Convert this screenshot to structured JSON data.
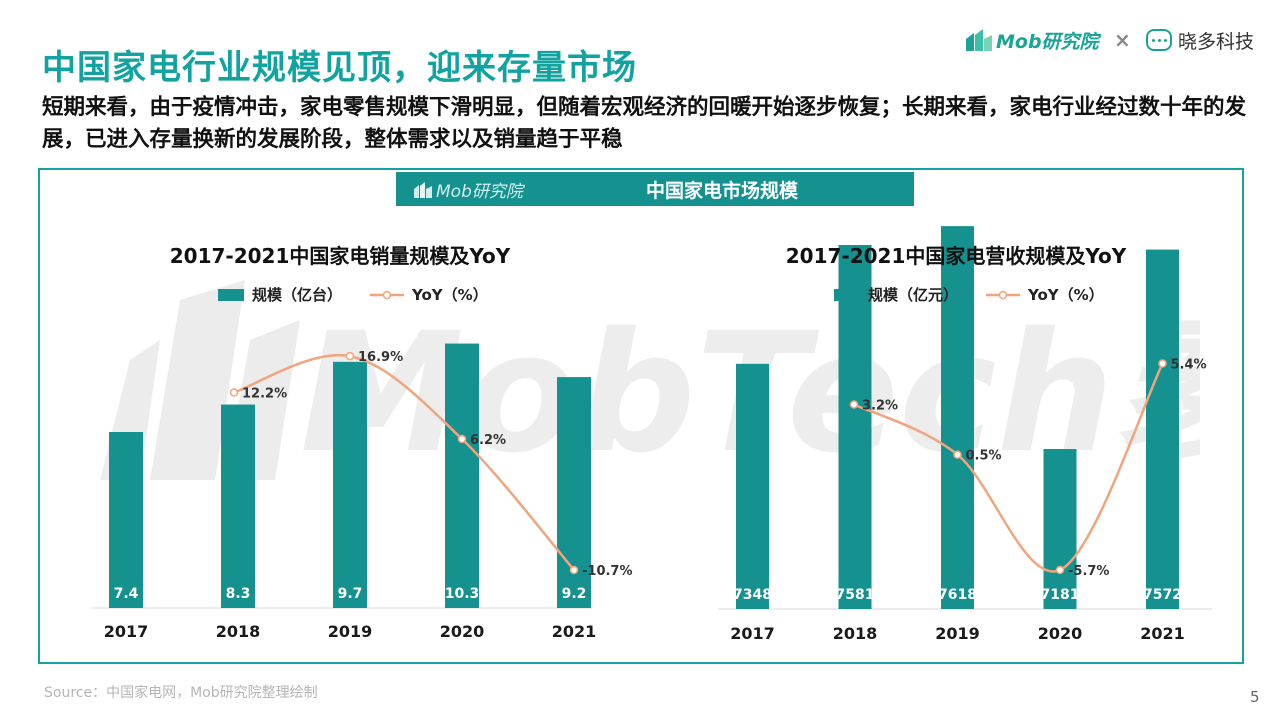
{
  "header": {
    "title": "中国家电行业规模见顶，迎来存量市场",
    "subtitle": "短期来看，由于疫情冲击，家电零售规模下滑明显，但随着宏观经济的回暖开始逐步恢复；长期来看，家电行业经过数十年的发展，已进入存量换新的发展阶段，整体需求以及销量趋于平稳",
    "brand_mob": "Mob研究院",
    "brand_sep": "×",
    "brand_partner": "晓多科技"
  },
  "panel": {
    "logo": "Mob研究院",
    "title": "中国家电市场规模"
  },
  "watermark": "MobTech袤博",
  "colors": {
    "accent": "#11a3a0",
    "bar": "#15928f",
    "line": "#f2a47c"
  },
  "chart_data": [
    {
      "type": "bar",
      "title": "2017-2021中国家电销量规模及YoY",
      "categories": [
        "2017",
        "2018",
        "2019",
        "2020",
        "2021"
      ],
      "series": [
        {
          "name": "规模（亿台）",
          "type": "bar",
          "values": [
            7.4,
            8.3,
            9.7,
            10.3,
            9.2
          ],
          "labels": [
            "7.4",
            "8.3",
            "9.7",
            "10.3",
            "9.2"
          ]
        },
        {
          "name": "YoY（%）",
          "type": "line",
          "values": [
            null,
            12.2,
            16.9,
            6.2,
            -10.7
          ],
          "labels": [
            "",
            "12.2%",
            "16.9%",
            "6.2%",
            "-10.7%"
          ]
        }
      ]
    },
    {
      "type": "bar",
      "title": "2017-2021中国家电营收规模及YoY",
      "categories": [
        "2017",
        "2018",
        "2019",
        "2020",
        "2021"
      ],
      "series": [
        {
          "name": "规模（亿元）",
          "type": "bar",
          "values": [
            7348,
            7581,
            7618,
            7181,
            7572
          ],
          "labels": [
            "7348",
            "7581",
            "7618",
            "7181",
            "7572"
          ]
        },
        {
          "name": "YoY（%）",
          "type": "line",
          "values": [
            null,
            3.2,
            0.5,
            -5.7,
            5.4
          ],
          "labels": [
            "",
            "3.2%",
            "0.5%",
            "-5.7%",
            "5.4%"
          ]
        }
      ]
    }
  ],
  "footer": {
    "source": "Source：中国家电网，Mob研究院整理绘制",
    "page": "5"
  }
}
